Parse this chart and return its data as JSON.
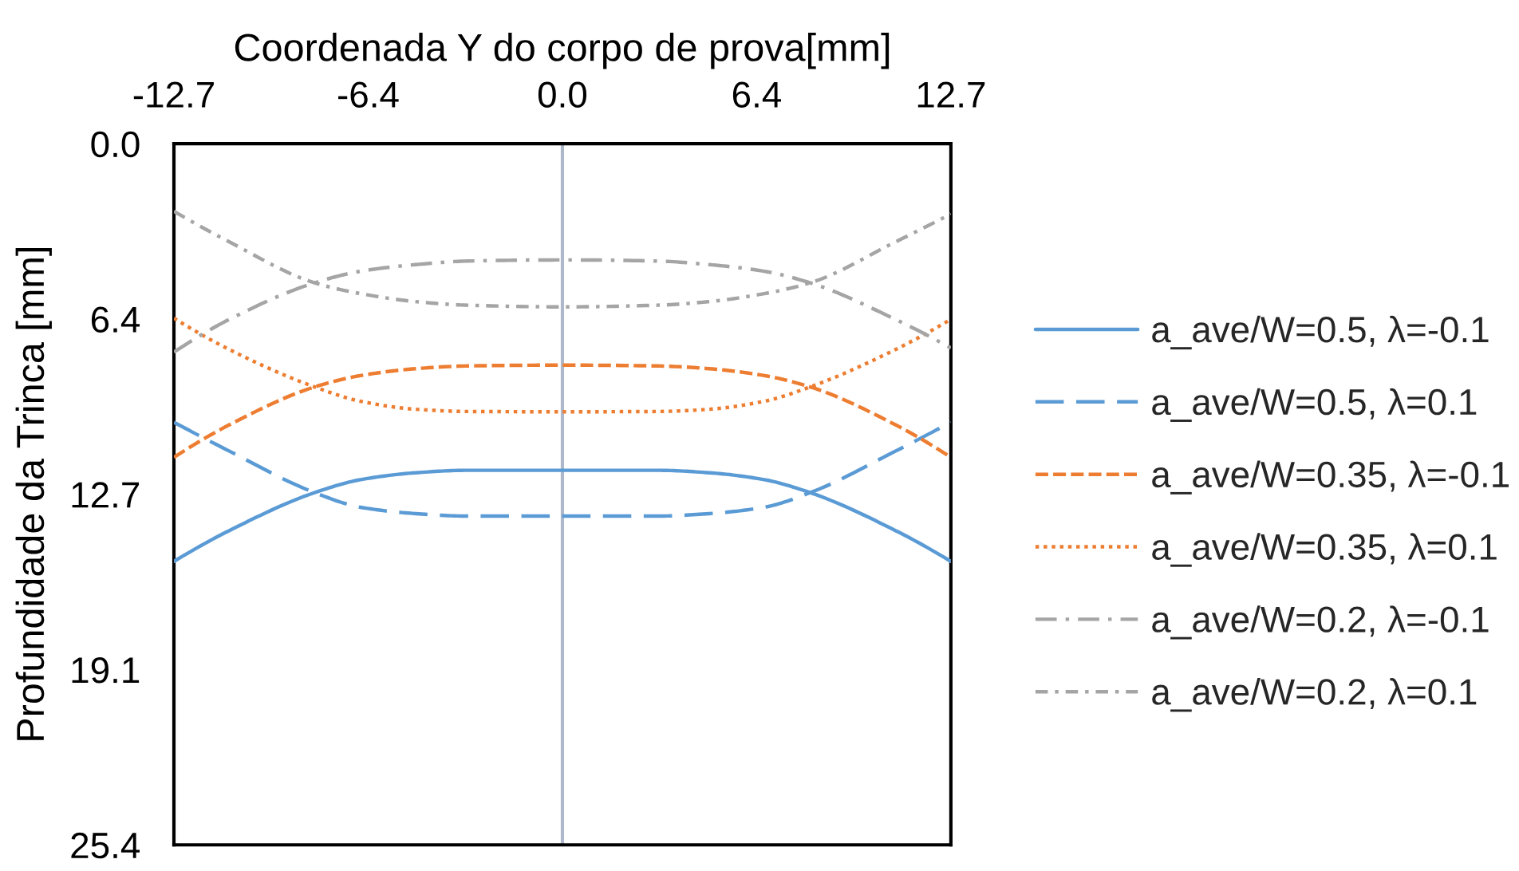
{
  "chart_data": {
    "type": "line",
    "xlabel": "Coordenada Y do corpo de prova[mm]",
    "ylabel": "Profundidade da Trinca [mm]",
    "x": [
      -12.7,
      -10.9,
      -8.1,
      -6.6,
      -4.8,
      -3.1,
      0,
      3.1,
      4.8,
      6.6,
      8.1,
      10.9,
      12.7
    ],
    "xlim": [
      -12.7,
      12.7
    ],
    "xticks": [
      -12.7,
      {
        "value": -6.35,
        "label": "-6.4"
      },
      {
        "value": 0,
        "label": "0.0"
      },
      {
        "value": 6.35,
        "label": "6.4"
      },
      12.7
    ],
    "ylim": [
      25.4,
      0
    ],
    "yticks": [
      {
        "value": 0,
        "label": "0.0"
      },
      {
        "value": 6.35,
        "label": "6.4"
      },
      12.7,
      {
        "value": 19.05,
        "label": "19.1"
      },
      25.4
    ],
    "legend": "right",
    "ref_lines": [
      {
        "axis": "x",
        "value": 0,
        "color": "#adb9ca"
      }
    ],
    "series": [
      {
        "name": "a_ave/W=0.5, λ=-0.1",
        "color": "#5b9bd5",
        "line_style": "solid",
        "values": [
          15.13,
          14.02,
          12.64,
          12.17,
          11.92,
          11.83,
          11.83,
          11.83,
          11.92,
          12.17,
          12.64,
          14.02,
          15.13
        ]
      },
      {
        "name": "a_ave/W=0.5, λ=0.1",
        "color": "#5b9bd5",
        "line_style": "longdash",
        "values": [
          10.09,
          11.13,
          12.64,
          13.17,
          13.4,
          13.49,
          13.49,
          13.49,
          13.4,
          13.17,
          12.64,
          11.13,
          10.09
        ]
      },
      {
        "name": "a_ave/W=0.35, λ=-0.1",
        "color": "#ed7d31",
        "line_style": "dashed",
        "values": [
          11.36,
          10.19,
          8.81,
          8.4,
          8.15,
          8.05,
          8.02,
          8.05,
          8.15,
          8.4,
          8.81,
          10.19,
          11.36
        ]
      },
      {
        "name": "a_ave/W=0.35, λ=0.1",
        "color": "#ed7d31",
        "line_style": "dotted",
        "values": [
          6.32,
          7.45,
          8.81,
          9.33,
          9.62,
          9.7,
          9.71,
          9.7,
          9.62,
          9.33,
          8.81,
          7.45,
          6.36
        ]
      },
      {
        "name": "a_ave/W=0.2, λ=-0.1",
        "color": "#a5a5a5",
        "line_style": "longdashdot",
        "values": [
          7.55,
          6.37,
          5.04,
          4.62,
          4.38,
          4.25,
          4.21,
          4.25,
          4.38,
          4.62,
          5.04,
          6.37,
          7.4
        ]
      },
      {
        "name": "a_ave/W=0.2, λ=0.1",
        "color": "#a5a5a5",
        "line_style": "dashdot",
        "values": [
          2.45,
          3.55,
          5.04,
          5.43,
          5.72,
          5.85,
          5.91,
          5.85,
          5.72,
          5.43,
          5.04,
          3.55,
          2.55
        ]
      }
    ]
  }
}
